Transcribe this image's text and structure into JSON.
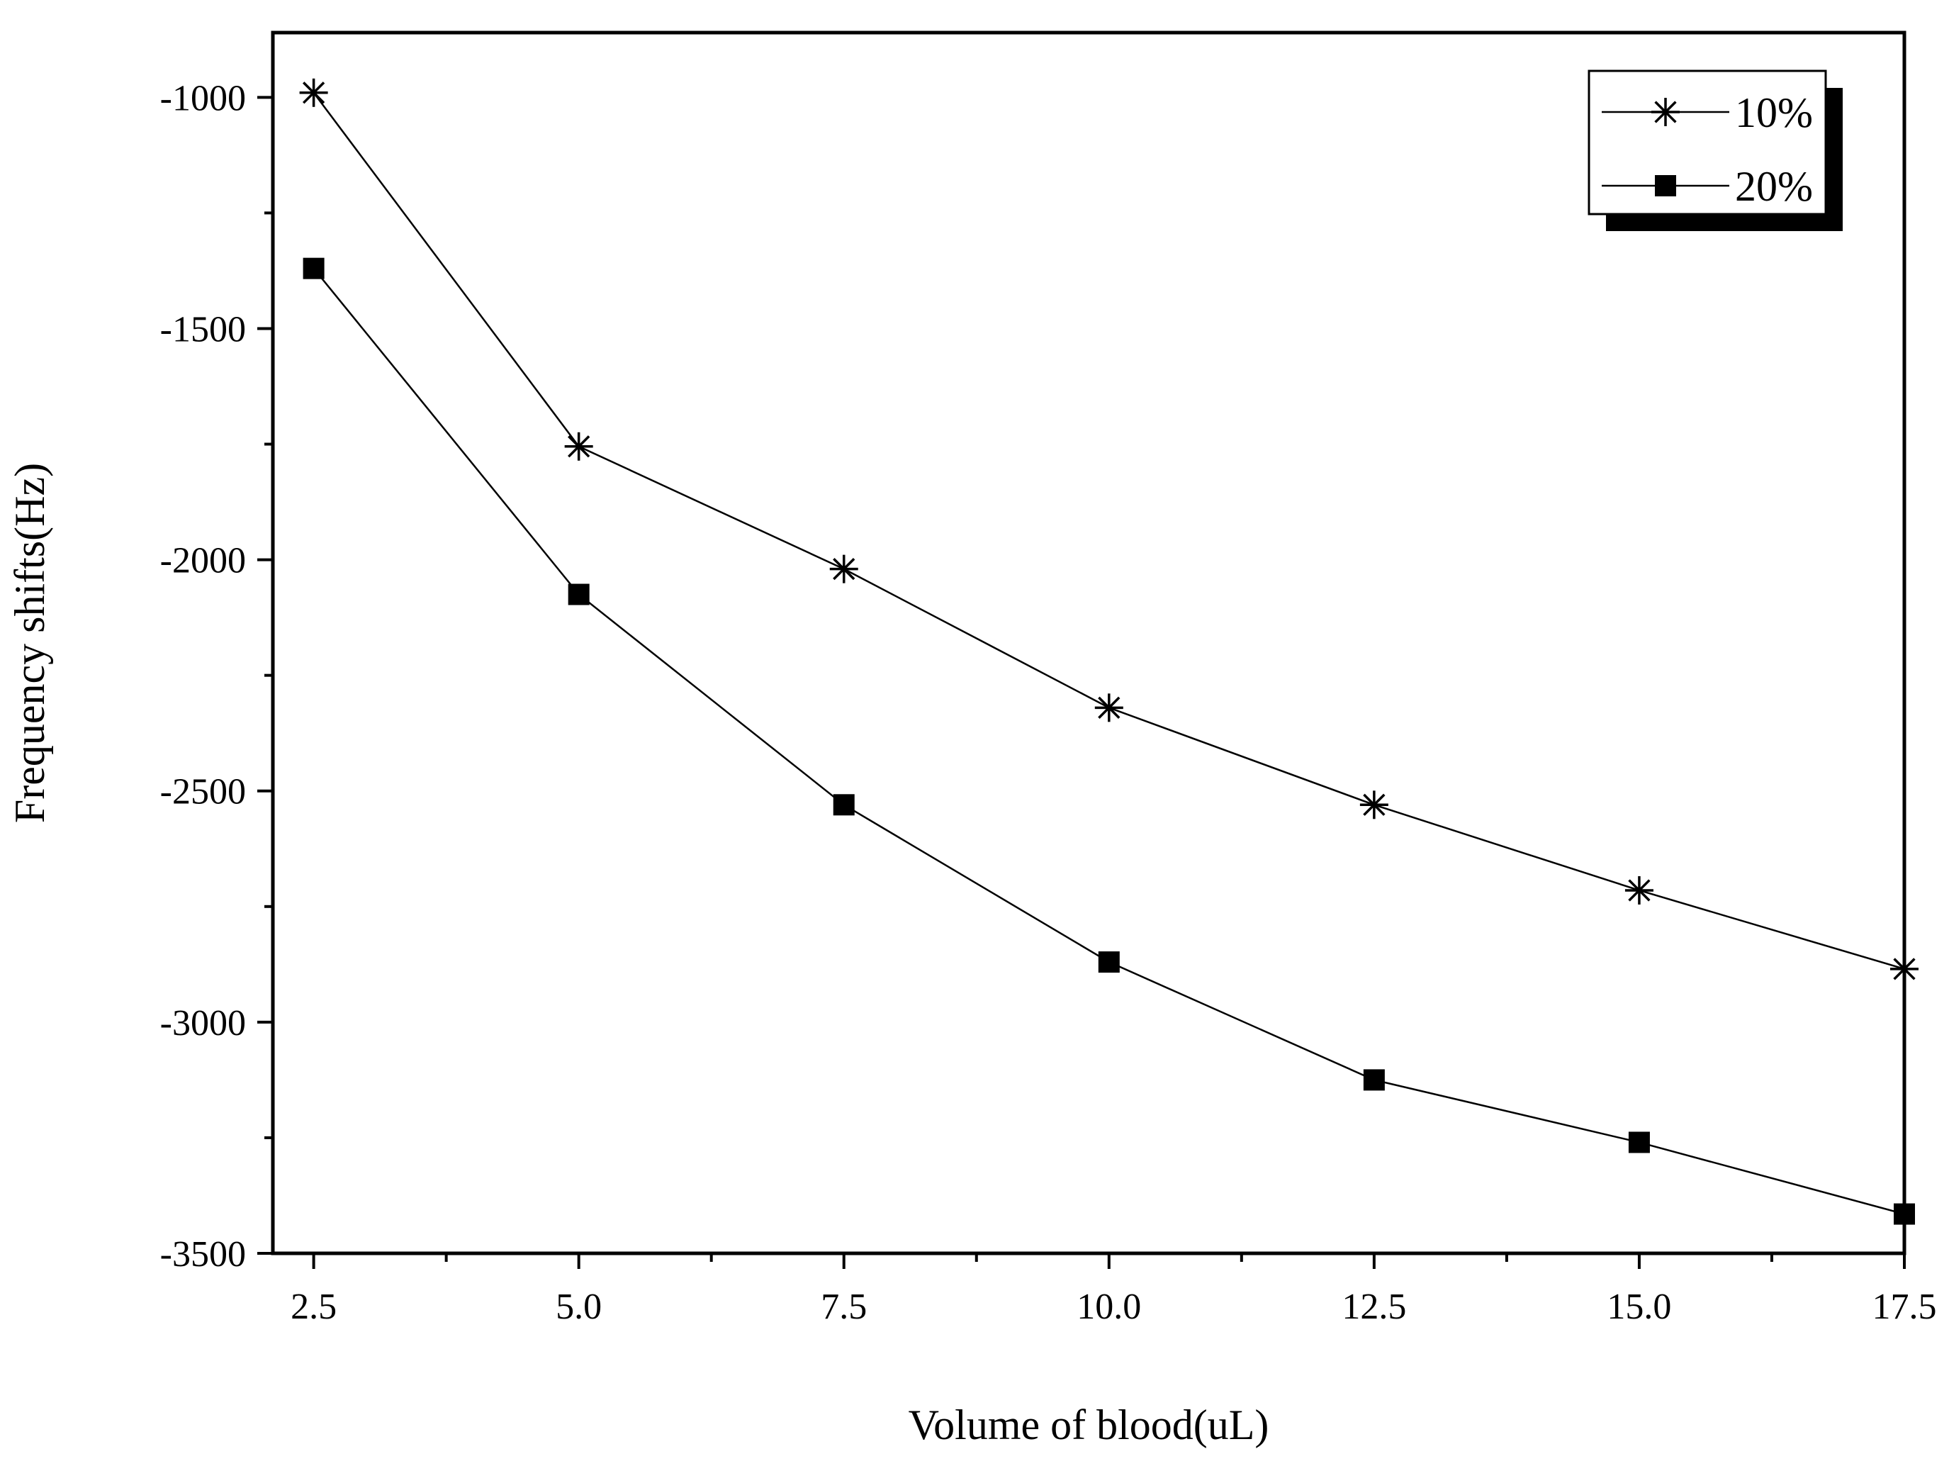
{
  "chart_data": {
    "type": "line",
    "title": "",
    "xlabel": "Volume of blood(uL)",
    "ylabel": "Frequency shifts(Hz)",
    "xlim": [
      2.5,
      17.5
    ],
    "ylim": [
      -3500,
      -860
    ],
    "x_ticks": [
      "2.5",
      "5.0",
      "7.5",
      "10.0",
      "12.5",
      "15.0",
      "17.5"
    ],
    "x_tick_values": [
      2.5,
      5.0,
      7.5,
      10.0,
      12.5,
      15.0,
      17.5
    ],
    "y_ticks": [
      "-1000",
      "-1500",
      "-2000",
      "-2500",
      "-3000",
      "-3500"
    ],
    "y_tick_values": [
      -1000,
      -1500,
      -2000,
      -2500,
      -3000,
      -3500
    ],
    "grid": false,
    "legend_position": "top-right",
    "x": [
      2.5,
      5.0,
      7.5,
      10.0,
      12.5,
      15.0,
      17.5
    ],
    "series": [
      {
        "name": "10%",
        "marker": "asterisk",
        "values": [
          -990,
          -1755,
          -2020,
          -2320,
          -2530,
          -2715,
          -2885
        ]
      },
      {
        "name": "20%",
        "marker": "square",
        "values": [
          -1370,
          -2075,
          -2530,
          -2870,
          -3125,
          -3260,
          -3415
        ]
      }
    ]
  }
}
